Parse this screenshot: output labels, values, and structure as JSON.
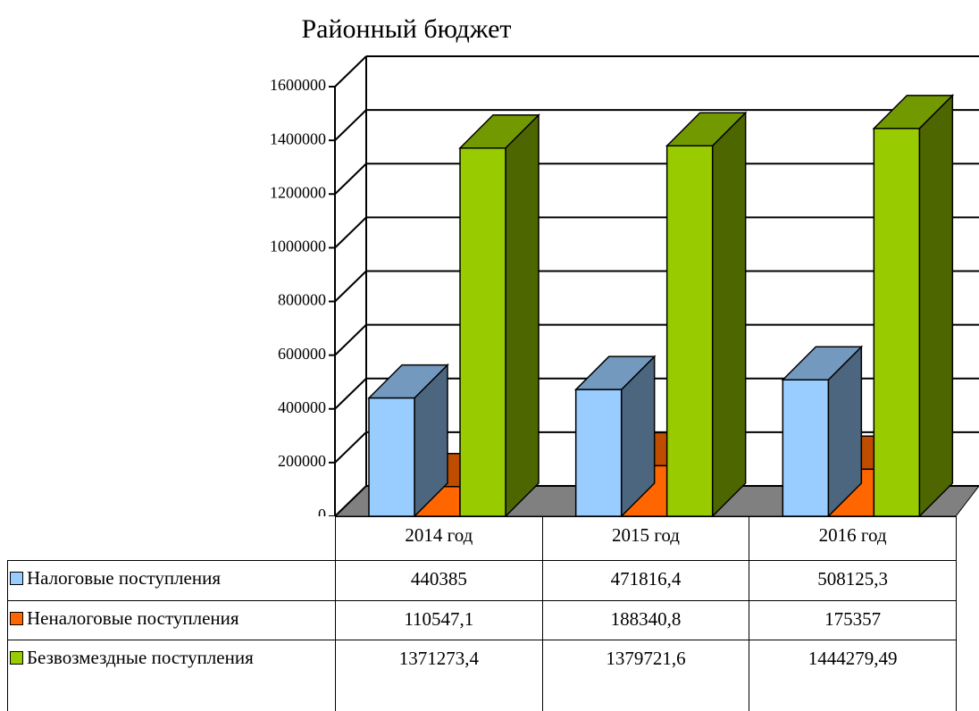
{
  "chart_data": {
    "type": "bar",
    "title": "Районный бюджет",
    "categories": [
      "2014 год",
      "2015 год",
      "2016 год"
    ],
    "series": [
      {
        "name": "Налоговые поступления",
        "color": "#99ccff",
        "values": [
          440385,
          471816.4,
          508125.3
        ],
        "value_labels": [
          "440385",
          "471816,4",
          "508125,3"
        ]
      },
      {
        "name": "Неналоговые поступления",
        "color": "#ff6600",
        "values": [
          110547.1,
          188340.8,
          175357
        ],
        "value_labels": [
          "110547,1",
          "188340,8",
          "175357"
        ]
      },
      {
        "name": "Безвозмездные поступления",
        "color": "#99cc00",
        "values": [
          1371273.4,
          1379721.6,
          1444279.49
        ],
        "value_labels": [
          "1371273,4",
          "1379721,6",
          "1444279,49"
        ]
      }
    ],
    "ylim": [
      0,
      1600000
    ],
    "yticks": [
      0,
      200000,
      400000,
      600000,
      800000,
      1000000,
      1200000,
      1400000,
      1600000
    ],
    "grid": true
  }
}
